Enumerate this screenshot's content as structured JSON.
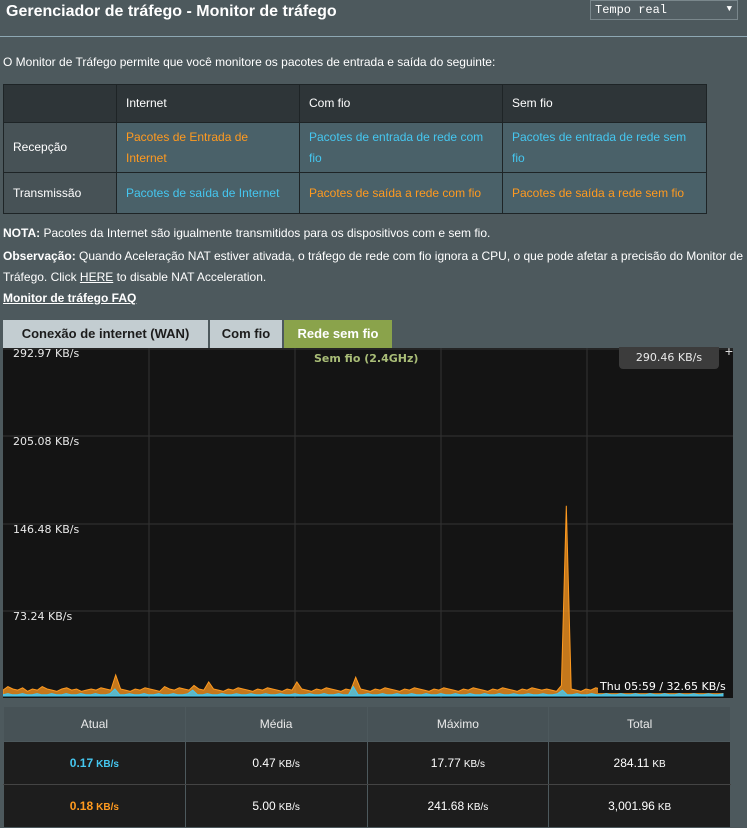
{
  "header": {
    "title": "Gerenciador de tráfego - Monitor de tráfego",
    "select_value": "Tempo real"
  },
  "intro": "O Monitor de Tráfego permite que você monitore os pacotes de entrada e saída do seguinte:",
  "matrix": {
    "columns": [
      "",
      "Internet",
      "Com fio",
      "Sem fio"
    ],
    "rows": [
      {
        "label": "Recepção",
        "cells": [
          "Pacotes de Entrada de Internet",
          "Pacotes de entrada de rede com fio",
          "Pacotes de entrada de rede sem fio"
        ]
      },
      {
        "label": "Transmissão",
        "cells": [
          "Pacotes de saída de Internet",
          "Pacotes de saída a rede com fio",
          "Pacotes de saída a rede sem fio"
        ]
      }
    ]
  },
  "notes": {
    "nota_label": "NOTA:",
    "nota_text": " Pacotes da Internet são igualmente transmitidos para os dispositivos com e sem fio.",
    "obs_label": "Observação:",
    "obs_text": " Quando Aceleração NAT estiver ativada, o tráfego de rede com fio ignora a CPU, o que pode afetar a precisão do Monitor de Tráfego. Click ",
    "obs_link": "HERE",
    "obs_tail": " to disable NAT Acceleration.",
    "faq": "Monitor de tráfego FAQ"
  },
  "tabs": [
    {
      "label": "Conexão de internet (WAN)",
      "active": false
    },
    {
      "label": "Com fio",
      "active": false
    },
    {
      "label": "Rede sem fio",
      "active": true
    }
  ],
  "chart_data": {
    "type": "area",
    "series_label": "Sem fio (2.4GHz)",
    "y_tick_labels": [
      "292.97 KB/s",
      "205.08 KB/s",
      "146.48 KB/s",
      "73.24 KB/s"
    ],
    "ylim": [
      0,
      292.97
    ],
    "unit": "KB/s",
    "peak_label": "290.46 KB/s",
    "hover_readout": "Thu 05:59 / 32.65 KB/s",
    "colors": {
      "reception": "#45c7f0",
      "transmission": "#ff9a1f"
    },
    "transmission": [
      5,
      8,
      6,
      5,
      7,
      4,
      6,
      5,
      8,
      6,
      5,
      4,
      6,
      7,
      5,
      6,
      4,
      5,
      6,
      5,
      7,
      6,
      5,
      18,
      6,
      5,
      4,
      6,
      5,
      7,
      6,
      5,
      4,
      8,
      6,
      5,
      7,
      6,
      5,
      9,
      6,
      5,
      12,
      6,
      5,
      4,
      6,
      5,
      7,
      6,
      5,
      4,
      6,
      5,
      7,
      6,
      5,
      4,
      6,
      5,
      12,
      6,
      5,
      4,
      6,
      5,
      7,
      6,
      5,
      4,
      6,
      5,
      16,
      6,
      5,
      4,
      6,
      5,
      7,
      6,
      5,
      4,
      6,
      5,
      7,
      6,
      5,
      4,
      6,
      5,
      7,
      6,
      5,
      4,
      6,
      5,
      7,
      6,
      5,
      4,
      6,
      5,
      7,
      6,
      5,
      4,
      6,
      5,
      7,
      6,
      5,
      6,
      5,
      4,
      9,
      162,
      6,
      5,
      4,
      6,
      5,
      7,
      6,
      5,
      4,
      6,
      5,
      7,
      6,
      5,
      4,
      6,
      5,
      7,
      6,
      5,
      4,
      6,
      5,
      7,
      6,
      5,
      4,
      6,
      5,
      8,
      6,
      5
    ],
    "reception": [
      1,
      2,
      1,
      1,
      2,
      1,
      1,
      2,
      1,
      1,
      2,
      1,
      1,
      2,
      1,
      1,
      2,
      1,
      1,
      2,
      1,
      1,
      2,
      6,
      1,
      1,
      2,
      1,
      1,
      2,
      1,
      1,
      2,
      1,
      1,
      2,
      1,
      1,
      2,
      5,
      1,
      1,
      2,
      1,
      1,
      2,
      1,
      1,
      2,
      1,
      1,
      2,
      1,
      1,
      2,
      1,
      1,
      2,
      1,
      1,
      2,
      1,
      1,
      2,
      1,
      1,
      2,
      1,
      1,
      2,
      1,
      1,
      8,
      1,
      1,
      2,
      1,
      1,
      2,
      1,
      1,
      2,
      1,
      1,
      2,
      1,
      1,
      2,
      1,
      1,
      2,
      1,
      1,
      2,
      1,
      1,
      2,
      1,
      1,
      2,
      1,
      1,
      2,
      1,
      1,
      2,
      1,
      1,
      2,
      1,
      1,
      2,
      1,
      1,
      2,
      5,
      1,
      1,
      2,
      1,
      1,
      2,
      1,
      1,
      2,
      1,
      1,
      2,
      1,
      1,
      2,
      1,
      1,
      2,
      1,
      1,
      2,
      1,
      1,
      2,
      1,
      1,
      2,
      1,
      1,
      2,
      1,
      1,
      2
    ]
  },
  "stats": {
    "headers": [
      "Atual",
      "Média",
      "Máximo",
      "Total"
    ],
    "rows": [
      {
        "current": "0.17",
        "current_unit": "KB/s",
        "avg": "0.47",
        "avg_unit": "KB/s",
        "max": "17.77",
        "max_unit": "KB/s",
        "total": "284.11",
        "total_unit": "KB"
      },
      {
        "current": "0.18",
        "current_unit": "KB/s",
        "avg": "5.00",
        "avg_unit": "KB/s",
        "max": "241.68",
        "max_unit": "KB/s",
        "total": "3,001.96",
        "total_unit": "KB"
      }
    ]
  }
}
